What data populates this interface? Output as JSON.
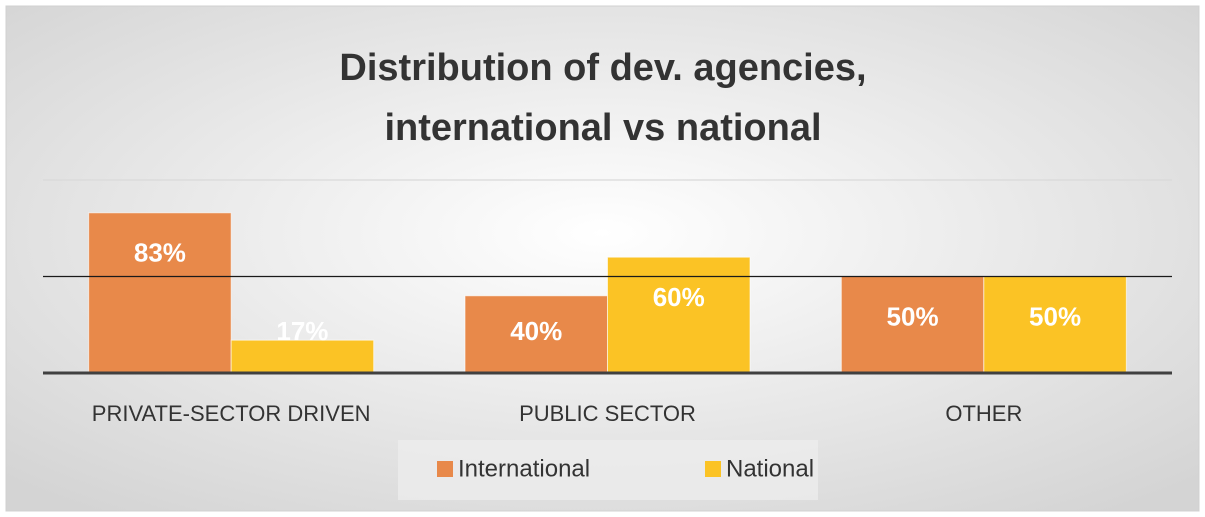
{
  "chart_data": {
    "type": "bar",
    "title": "Distribution of dev. agencies, international vs national",
    "title_lines": [
      "Distribution of dev. agencies,",
      "international vs national"
    ],
    "categories": [
      "PRIVATE-SECTOR DRIVEN",
      "PUBLIC SECTOR",
      "OTHER"
    ],
    "series": [
      {
        "name": "International",
        "color": "#e8894a",
        "values": [
          83,
          40,
          50
        ],
        "value_labels": [
          "83%",
          "40%",
          "50%"
        ]
      },
      {
        "name": "National",
        "color": "#fbc325",
        "values": [
          17,
          60,
          50
        ],
        "value_labels": [
          "17%",
          "60%",
          "50%"
        ]
      }
    ],
    "ylim": [
      0,
      100
    ],
    "yticks": [
      0,
      50,
      100
    ],
    "grid": true,
    "legend": "bottom"
  }
}
